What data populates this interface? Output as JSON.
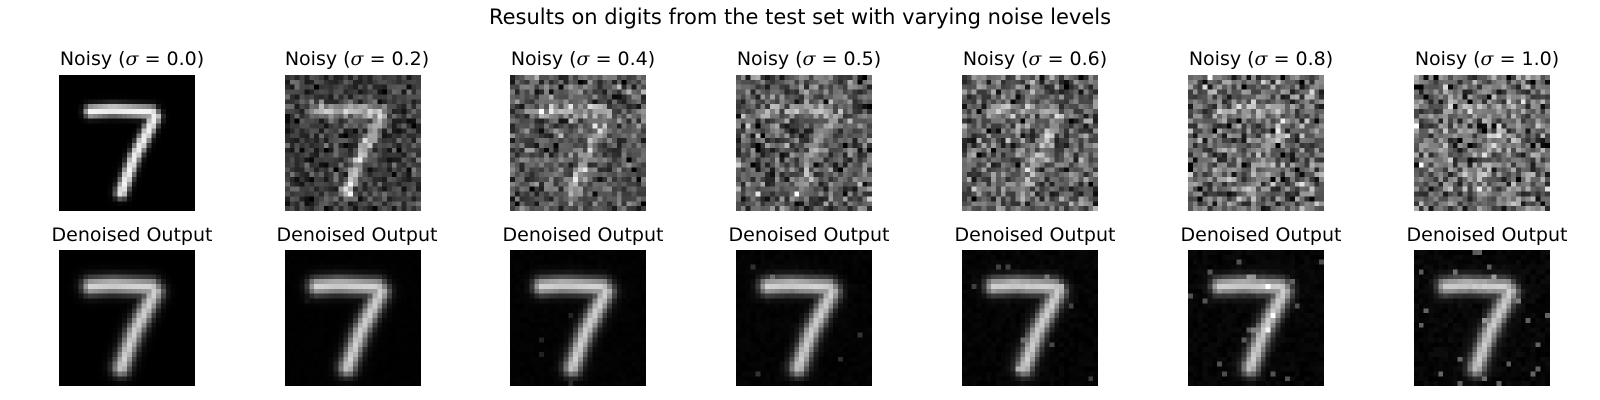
{
  "figure": {
    "title": "Results on digits from the test set with varying noise levels"
  },
  "noisy_row": {
    "label_prefix": "Noisy (",
    "sigma_symbol": "σ",
    "label_suffix": ")",
    "sigmas": [
      "0.0",
      "0.2",
      "0.4",
      "0.5",
      "0.6",
      "0.8",
      "1.0"
    ]
  },
  "denoised_row": {
    "label": "Denoised Output"
  },
  "image": {
    "digit": "7",
    "colormap": "gray"
  }
}
